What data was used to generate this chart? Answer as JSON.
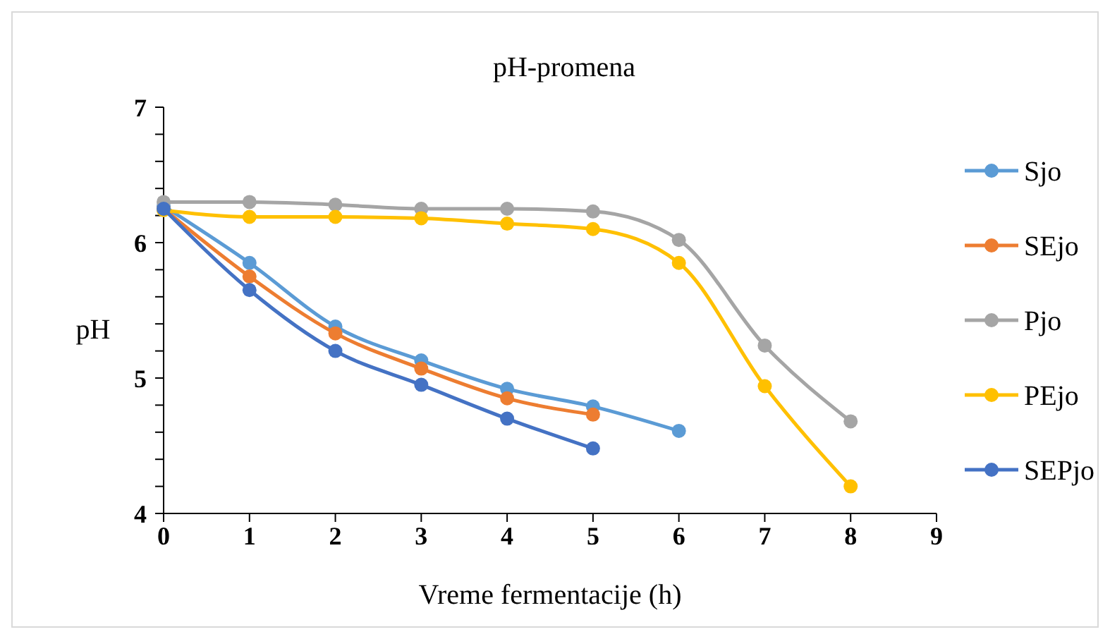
{
  "chart_data": {
    "type": "line",
    "title": "pH-promena",
    "xlabel": "Vreme fermentacije (h)",
    "ylabel": "pH",
    "xlim": [
      0,
      9
    ],
    "xticks": [
      0,
      1,
      2,
      3,
      4,
      5,
      6,
      7,
      8,
      9
    ],
    "ylim": [
      4,
      7
    ],
    "yticks": [
      4,
      {
        "value": 4.2,
        "label": null
      },
      {
        "value": 4.4,
        "label": null
      },
      {
        "value": 4.6,
        "label": null
      },
      {
        "value": 4.8,
        "label": null
      },
      5,
      {
        "value": 5.2,
        "label": null
      },
      {
        "value": 5.4,
        "label": null
      },
      {
        "value": 5.6,
        "label": null
      },
      {
        "value": 5.8,
        "label": null
      },
      6,
      {
        "value": 6.2,
        "label": null
      },
      {
        "value": 6.4,
        "label": null
      },
      {
        "value": 6.6,
        "label": null
      },
      {
        "value": 6.8,
        "label": null
      },
      7
    ],
    "grid": false,
    "legend": "right",
    "marker": "circle",
    "line_style": "solid",
    "series": [
      {
        "name": "Sjo",
        "color": "#5b9bd5",
        "x": [
          0,
          1,
          2,
          3,
          4,
          5,
          6
        ],
        "values": [
          6.27,
          5.85,
          5.38,
          5.13,
          4.92,
          4.79,
          4.61
        ]
      },
      {
        "name": "SEjo",
        "color": "#ed7d31",
        "x": [
          0,
          1,
          2,
          3,
          4,
          5
        ],
        "values": [
          6.25,
          5.75,
          5.33,
          5.07,
          4.85,
          4.73
        ]
      },
      {
        "name": "Pjo",
        "color": "#a5a5a5",
        "x": [
          0,
          1,
          2,
          3,
          4,
          5,
          6,
          7,
          8
        ],
        "values": [
          6.3,
          6.3,
          6.28,
          6.25,
          6.25,
          6.23,
          6.02,
          5.24,
          4.68
        ]
      },
      {
        "name": "PEjo",
        "color": "#ffc000",
        "x": [
          0,
          1,
          2,
          3,
          4,
          5,
          6,
          7,
          8
        ],
        "values": [
          6.24,
          6.19,
          6.19,
          6.18,
          6.14,
          6.1,
          5.85,
          4.94,
          4.2
        ]
      },
      {
        "name": "SEPjo",
        "color": "#4472c4",
        "x": [
          0,
          1,
          2,
          3,
          4,
          5
        ],
        "values": [
          6.25,
          5.65,
          5.2,
          4.95,
          4.7,
          4.48
        ]
      }
    ]
  }
}
